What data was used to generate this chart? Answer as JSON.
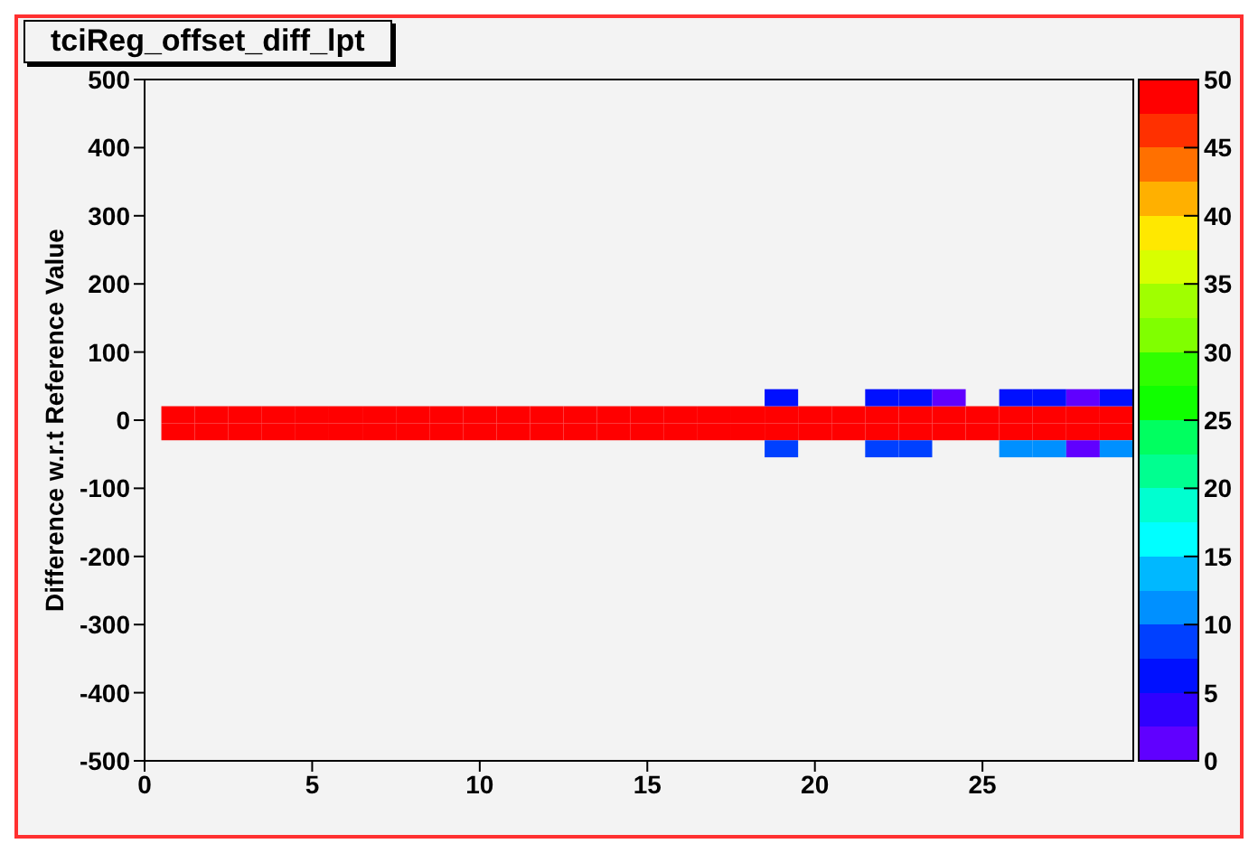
{
  "chart_data": {
    "type": "scatter",
    "title": "tciReg_offset_diff_lpt",
    "ylabel": "Difference w.r.t Reference Value",
    "marker": "square",
    "xlim": [
      0,
      29.5
    ],
    "xticks": [
      0,
      5,
      10,
      15,
      20,
      25
    ],
    "ylim": [
      -500,
      500
    ],
    "yticks": [
      -500,
      -400,
      -300,
      -200,
      -100,
      0,
      100,
      200,
      300,
      400,
      500
    ],
    "clim": [
      0,
      50
    ],
    "cticks": [
      0,
      5,
      10,
      15,
      20,
      25,
      30,
      35,
      40,
      45,
      50
    ],
    "x": [
      1,
      2,
      3,
      4,
      5,
      6,
      7,
      8,
      9,
      10,
      11,
      12,
      13,
      14,
      15,
      16,
      17,
      18,
      19,
      20,
      21,
      22,
      23,
      24,
      25,
      26,
      27,
      28,
      29,
      1,
      2,
      3,
      4,
      5,
      6,
      7,
      8,
      9,
      10,
      11,
      12,
      13,
      14,
      15,
      16,
      17,
      18,
      19,
      20,
      21,
      22,
      23,
      24,
      25,
      26,
      27,
      28,
      29,
      19,
      22,
      23,
      24,
      26,
      27,
      28,
      29,
      19,
      22,
      23,
      26,
      27,
      28,
      29
    ],
    "values": [
      8,
      8,
      8,
      8,
      8,
      8,
      8,
      8,
      8,
      8,
      8,
      8,
      8,
      8,
      8,
      8,
      8,
      8,
      8,
      8,
      8,
      8,
      8,
      8,
      8,
      8,
      8,
      8,
      8,
      -17,
      -17,
      -17,
      -17,
      -17,
      -17,
      -17,
      -17,
      -17,
      -17,
      -17,
      -17,
      -17,
      -17,
      -17,
      -17,
      -17,
      -17,
      -17,
      -17,
      -17,
      -17,
      -17,
      -17,
      -17,
      -17,
      -17,
      -17,
      -17,
      33,
      33,
      33,
      33,
      33,
      33,
      33,
      33,
      -42,
      -42,
      -42,
      -42,
      -42,
      -42,
      -42
    ],
    "cvalues": [
      49,
      49,
      49,
      49,
      49,
      49,
      49,
      49,
      49,
      49,
      49,
      49,
      49,
      49,
      49,
      49,
      49,
      49,
      49,
      49,
      49,
      49,
      49,
      49,
      49,
      49,
      49,
      49,
      49,
      49,
      49,
      49,
      49,
      49,
      49,
      49,
      49,
      49,
      49,
      49,
      49,
      49,
      49,
      49,
      49,
      49,
      49,
      49,
      49,
      49,
      49,
      49,
      49,
      49,
      49,
      49,
      49,
      49,
      6,
      6,
      6,
      1,
      6,
      6,
      1,
      6,
      9,
      9,
      9,
      11,
      11,
      1,
      11
    ]
  }
}
